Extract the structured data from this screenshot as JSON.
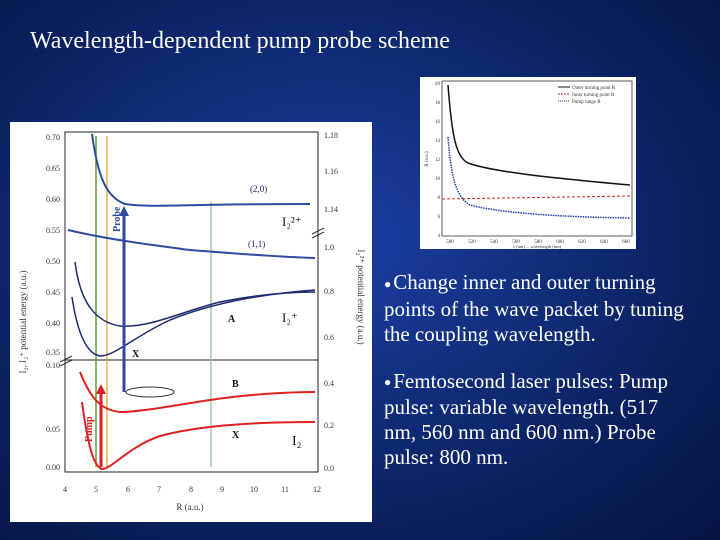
{
  "slide": {
    "title": "Wavelength-dependent pump probe scheme"
  },
  "bullets": [
    {
      "text": "Change inner and outer turning points of the wave packet by tuning the coupling wavelength."
    },
    {
      "text": "Femtosecond laser pulses: Pump pulse: variable wavelength. (517 nm, 560 nm and 600 nm.) Probe pulse: 800 nm."
    }
  ],
  "left_figure": {
    "y_left_label": "I₂, I₂⁺ potential energy (a.u.)",
    "y_right_label": "I₂²⁺ potential energy (a.u.)",
    "x_label": "R (a.u.)",
    "x_ticks": [
      "4",
      "5",
      "6",
      "7",
      "8",
      "9",
      "10",
      "11",
      "12"
    ],
    "y_left_ticks_top": [
      "0.70",
      "0.65",
      "0.60",
      "0.55",
      "0.50",
      "0.45",
      "0.40",
      "0.35"
    ],
    "y_left_ticks_bottom": [
      "0.10",
      "0.05",
      "0.00"
    ],
    "y_right_ticks_top": [
      "1.18",
      "1.16",
      "1.14"
    ],
    "y_right_ticks_mid": [
      "1.0",
      "0.8",
      "0.6"
    ],
    "y_right_ticks_bottom": [
      "0.4",
      "0.2",
      "0.0"
    ],
    "labels": {
      "state_20": "(2,0)",
      "state_11": "(1,1)",
      "i2_2plus": "I₂²⁺",
      "i2_plus": "I₂⁺",
      "i2": "I₂",
      "A": "A",
      "X_ion": "X",
      "B": "B",
      "X": "X",
      "probe": "Probe",
      "pump": "Pump"
    }
  },
  "right_figure": {
    "legend": [
      "Outer turning point R",
      "Inner turning point R",
      "Pump range R"
    ],
    "x_ticks": [
      "500",
      "520",
      "540",
      "560",
      "580",
      "600",
      "620",
      "640",
      "660"
    ],
    "y_ticks": [
      "20",
      "18",
      "16",
      "14",
      "12",
      "10",
      "8",
      "6",
      "4"
    ],
    "x_label": "λ (nm) ... wavelength (nm)",
    "y_label": "R (a.u.)"
  }
}
